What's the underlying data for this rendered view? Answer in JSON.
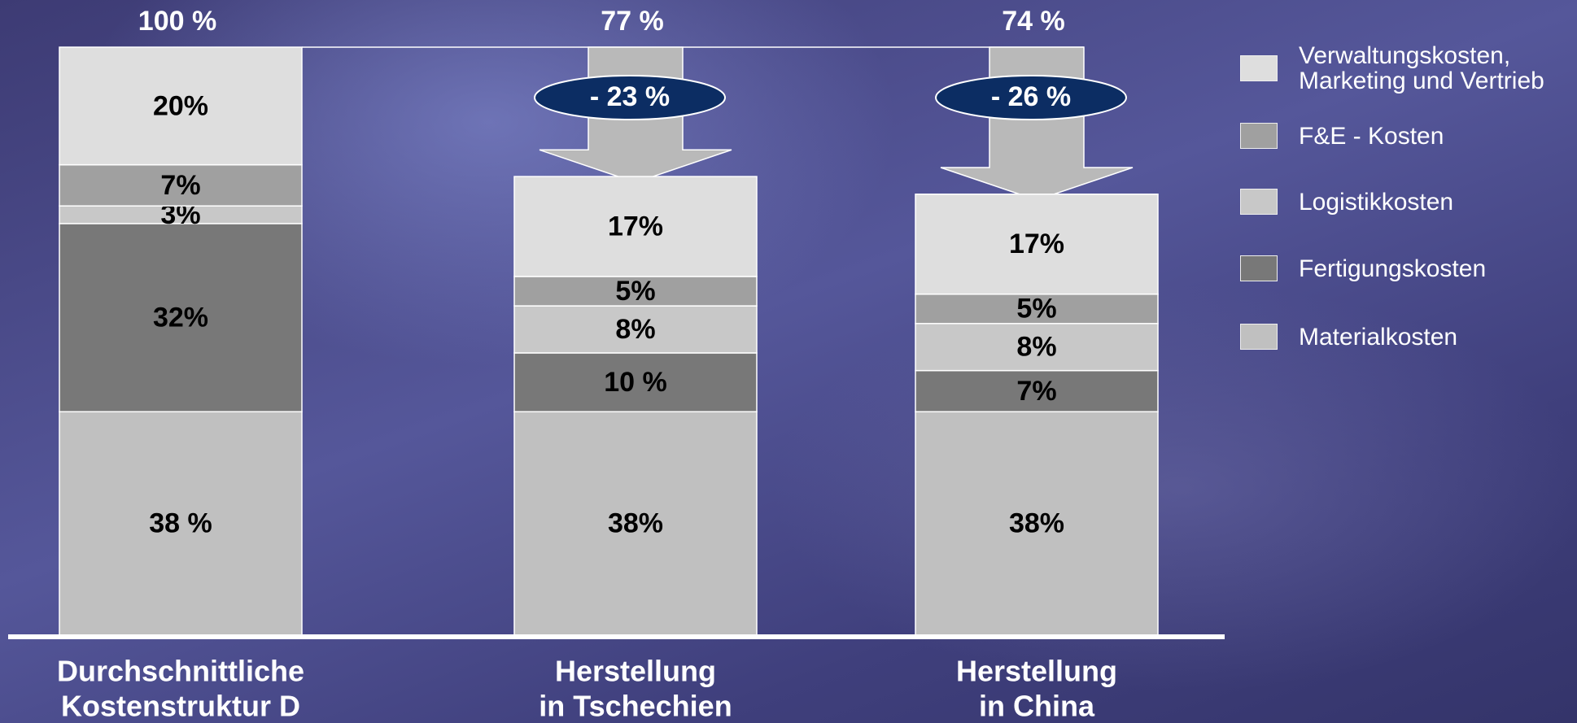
{
  "chart_data": {
    "type": "stacked_bar",
    "categories": [
      [
        "Durchschnittliche",
        "Kostenstruktur D"
      ],
      [
        "Herstellung",
        "in Tschechien"
      ],
      [
        "Herstellung",
        "in China"
      ]
    ],
    "series": [
      {
        "name": "Materialkosten",
        "color": "#c0c0c0",
        "values": [
          38,
          38,
          38
        ],
        "value_labels": [
          "38 %",
          "38%",
          "38%"
        ]
      },
      {
        "name": "Fertigungskosten",
        "color": "#787878",
        "values": [
          32,
          10,
          7
        ],
        "value_labels": [
          "32%",
          "10 %",
          "7%"
        ]
      },
      {
        "name": "Logistikkosten",
        "color": "#c8c8c8",
        "values": [
          3,
          8,
          8
        ],
        "value_labels": [
          "3%",
          "8%",
          "8%"
        ]
      },
      {
        "name": "F&E - Kosten",
        "color": "#a0a0a0",
        "values": [
          7,
          5,
          5
        ],
        "value_labels": [
          "7%",
          "5%",
          "5%"
        ]
      },
      {
        "name": "Verwaltungskosten, Marketing und Vertrieb",
        "color": "#dedede",
        "values": [
          20,
          17,
          17
        ],
        "value_labels": [
          "20%",
          "17%",
          "17%"
        ]
      }
    ],
    "totals": [
      100,
      77,
      74
    ],
    "total_labels": [
      "100 %",
      "77 %",
      "74 %"
    ],
    "reductions": [
      -23,
      -26
    ],
    "reduction_labels": [
      "- 23 %",
      "- 26 %"
    ],
    "ylim": [
      0,
      100
    ],
    "legend": "right"
  }
}
